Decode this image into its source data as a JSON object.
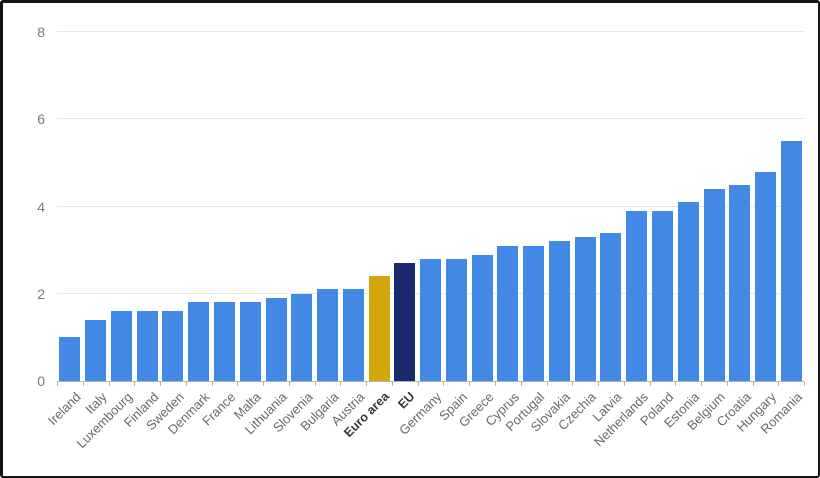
{
  "figure": {
    "title": "",
    "frame_color": "#141414",
    "background": "#ffffff"
  },
  "chart_data": {
    "type": "bar",
    "title": "",
    "xlabel": "",
    "ylabel": "",
    "categories": [
      "Ireland",
      "Italy",
      "Luxembourg",
      "Finland",
      "Sweden",
      "Denmark",
      "France",
      "Malta",
      "Lithuania",
      "Slovenia",
      "Bulgaria",
      "Austria",
      "Euro area",
      "EU",
      "Germany",
      "Spain",
      "Greece",
      "Cyprus",
      "Portugal",
      "Slovakia",
      "Czechia",
      "Latvia",
      "Netherlands",
      "Poland",
      "Estonia",
      "Belgium",
      "Croatia",
      "Hungary",
      "Romania"
    ],
    "values": [
      1.0,
      1.4,
      1.6,
      1.6,
      1.6,
      1.8,
      1.8,
      1.8,
      1.9,
      2.0,
      2.1,
      2.1,
      2.4,
      2.7,
      2.8,
      2.8,
      2.9,
      3.1,
      3.1,
      3.2,
      3.3,
      3.4,
      3.9,
      3.9,
      4.1,
      4.4,
      4.5,
      4.8,
      5.5
    ],
    "ylim": [
      0,
      8
    ],
    "y_ticks": [
      0,
      2,
      4,
      6,
      8
    ],
    "grid": true,
    "legend": null,
    "bold_categories": [
      "Euro area",
      "EU"
    ],
    "highlighted_bars": {
      "Euro area": "bar_gold",
      "EU": "bar_navy"
    }
  },
  "colors": {
    "bar_blue": "#4189e4",
    "bar_gold": "#d2a70a",
    "bar_navy": "#1b2c6e",
    "gridline": "#e8e8ec",
    "axis_line": "#b3b3b3",
    "y_label": "#7a7a7a",
    "x_label": "#696969",
    "x_label_bold": "#383838",
    "frame": "#141414",
    "background": "#ffffff"
  }
}
